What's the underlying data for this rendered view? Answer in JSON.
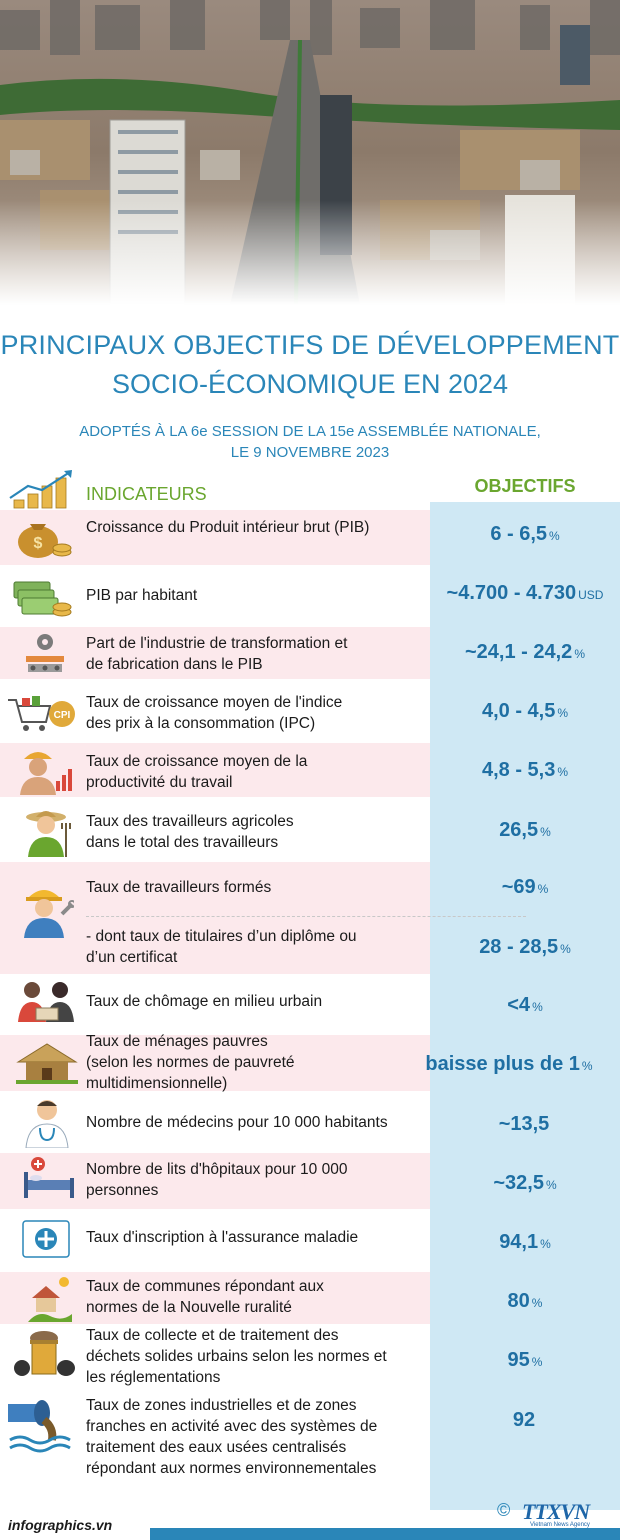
{
  "title": {
    "line1": "PRINCIPAUX OBJECTIFS DE DÉVELOPPEMENT",
    "line2": "SOCIO-ÉCONOMIQUE EN 2024",
    "sub1": "ADOPTÉS À LA 6e SESSION DE LA 15e ASSEMBLÉE NATIONALE,",
    "sub2": "LE 9 NOVEMBRE 2023"
  },
  "headers": {
    "indicators": "INDICATEURS",
    "objectives": "OBJECTIFS"
  },
  "rows": [
    {
      "icon": "money-bag-icon",
      "label1": "Croissance du Produit intérieur brut (PIB)",
      "label2": "",
      "label3": "",
      "label4": "",
      "value": "6 - 6,5",
      "unit": "%"
    },
    {
      "icon": "money-stack-icon",
      "label1": "PIB par habitant",
      "label2": "",
      "label3": "",
      "label4": "",
      "value": "~4.700 - 4.730",
      "unit": "USD"
    },
    {
      "icon": "factory-gear-icon",
      "label1": "Part de l'industrie de transformation et",
      "label2": "de fabrication dans le PIB",
      "label3": "",
      "label4": "",
      "value": "~24,1 - 24,2",
      "unit": "%"
    },
    {
      "icon": "cpi-cart-icon",
      "label1": "Taux de croissance moyen de l'indice",
      "label2": "des prix à la consommation (IPC)",
      "label3": "",
      "label4": "",
      "value": "4,0 - 4,5",
      "unit": "%"
    },
    {
      "icon": "worker-chart-icon",
      "label1": "Taux de croissance moyen de la",
      "label2": "productivité du travail",
      "label3": "",
      "label4": "",
      "value": "4,8 - 5,3",
      "unit": "%"
    },
    {
      "icon": "farmer-icon",
      "label1": "Taux des travailleurs agricoles",
      "label2": "dans le total des travailleurs",
      "label3": "",
      "label4": "",
      "value": "26,5",
      "unit": "%"
    },
    {
      "icon": "trained-worker-icon",
      "label1": "Taux de travailleurs formés",
      "label2": "",
      "label3": "",
      "label4": "",
      "value": "~69",
      "unit": "%"
    },
    {
      "icon": "",
      "label1": "- dont taux de titulaires d’un diplôme ou",
      "label2": "d’un certificat",
      "label3": "",
      "label4": "",
      "value": "28 - 28,5",
      "unit": "%"
    },
    {
      "icon": "unemployed-people-icon",
      "label1": "Taux de chômage en milieu urbain",
      "label2": "",
      "label3": "",
      "label4": "",
      "value": "<4",
      "unit": "%"
    },
    {
      "icon": "hut-icon",
      "label1": "Taux de ménages pauvres",
      "label2": "(selon les normes de pauvreté",
      "label3": "multidimensionnelle)",
      "label4": "",
      "value": "baisse plus de 1",
      "unit": "%"
    },
    {
      "icon": "doctor-icon",
      "label1": "Nombre de médecins pour 10 000 habitants",
      "label2": "",
      "label3": "",
      "label4": "",
      "value": "~13,5",
      "unit": ""
    },
    {
      "icon": "hospital-bed-icon",
      "label1": "Nombre de lits d'hôpitaux pour 10 000",
      "label2": "personnes",
      "label3": "",
      "label4": "",
      "value": "~32,5",
      "unit": "%"
    },
    {
      "icon": "health-insurance-icon",
      "label1": "Taux d'inscription à l'assurance maladie",
      "label2": "",
      "label3": "",
      "label4": "",
      "value": "94,1",
      "unit": "%"
    },
    {
      "icon": "rural-commune-icon",
      "label1": "Taux de communes répondant aux",
      "label2": "normes de la Nouvelle ruralité",
      "label3": "",
      "label4": "",
      "value": "80",
      "unit": "%"
    },
    {
      "icon": "waste-bin-icon",
      "label1": "Taux de collecte et de traitement des",
      "label2": "déchets solides urbains selon les normes et",
      "label3": "les réglementations",
      "label4": "",
      "value": "95",
      "unit": "%"
    },
    {
      "icon": "wastewater-pipe-icon",
      "label1": "Taux de zones industrielles et de zones",
      "label2": "franches en activité avec des systèmes de",
      "label3": "traitement des eaux usées centralisés",
      "label4": "répondant aux normes environnementales",
      "value": "92",
      "unit": ""
    }
  ],
  "footer": {
    "site": "infographics.vn",
    "copyright": "©",
    "logo": "TTXVN",
    "logo_sub": "Vietnam News Agency"
  },
  "colors": {
    "title": "#2a86b8",
    "header": "#6aa62f",
    "value": "#1f6fa3",
    "band": "#fce9ec",
    "column": "#cfe8f4"
  }
}
